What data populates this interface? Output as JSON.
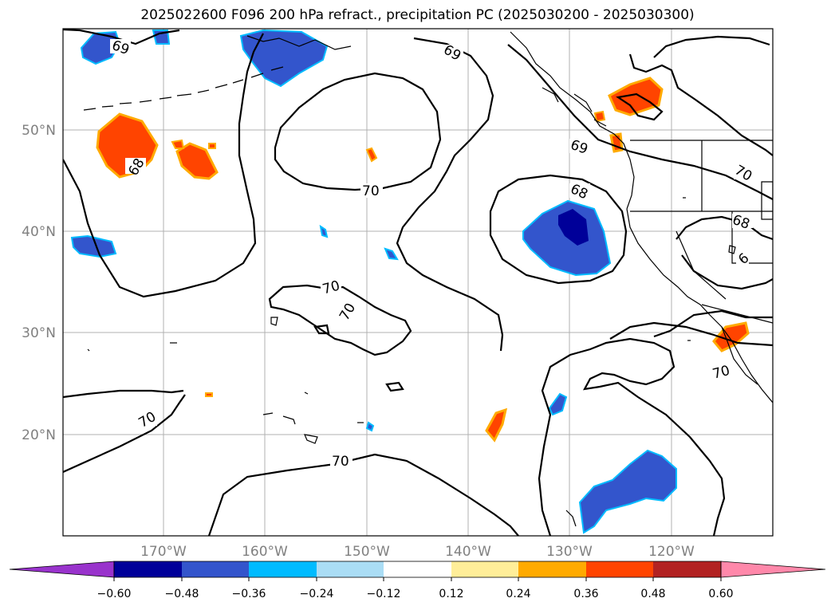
{
  "title": "2025022600 F096 200 hPa refract., precipitation PC (2025030200 - 2025030300)",
  "map": {
    "lat_ticks": [
      "50°N",
      "40°N",
      "30°N",
      "20°N"
    ],
    "lon_ticks": [
      "170°W",
      "160°W",
      "150°W",
      "140°W",
      "130°W",
      "120°W"
    ],
    "contour_labels": [
      "69",
      "69",
      "69",
      "68",
      "70",
      "68",
      "70",
      "70",
      "70",
      "70",
      "68",
      "6",
      "70",
      "70"
    ]
  },
  "colorbar": {
    "ticks": [
      "−0.60",
      "−0.48",
      "−0.36",
      "−0.24",
      "−0.12",
      "0.12",
      "0.24",
      "0.36",
      "0.48",
      "0.60"
    ],
    "colors": [
      "#9933cc",
      "#000099",
      "#3355cc",
      "#00bbff",
      "#aaddf5",
      "#ffffff",
      "#ffee99",
      "#ffaa00",
      "#ff4400",
      "#b22222",
      "#ff88aa"
    ]
  }
}
